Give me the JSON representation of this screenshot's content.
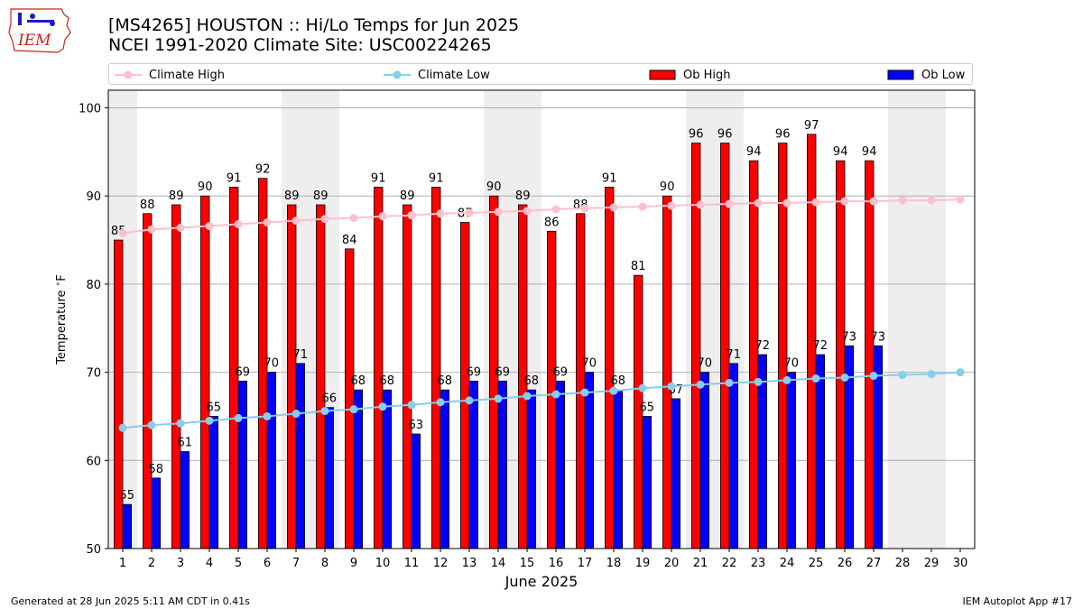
{
  "header": {
    "title_line1": "[MS4265] HOUSTON :: Hi/Lo Temps for Jun 2025",
    "title_line2": "NCEI 1991-2020 Climate Site: USC00224265"
  },
  "logo": {
    "text": "IEM"
  },
  "legend": {
    "climate_high": "Climate High",
    "climate_low": "Climate Low",
    "ob_high": "Ob High",
    "ob_low": "Ob Low"
  },
  "footer": {
    "left": "Generated at 28 Jun 2025 5:11 AM CDT in 0.41s",
    "right": "IEM Autoplot App #17"
  },
  "colors": {
    "ob_high": "#ff0000",
    "ob_low": "#0000ff",
    "climate_high": "#ffc0cb",
    "climate_low": "#87ceeb",
    "weekend_shade": "#eeeeee",
    "grid": "#b0b0b0"
  },
  "chart_data": {
    "type": "bar",
    "xlabel": "June 2025",
    "ylabel": "Temperature $^\\circ$F",
    "ylim": [
      50,
      102
    ],
    "yticks": [
      50,
      60,
      70,
      80,
      90,
      100
    ],
    "grid": "horizontal",
    "legend_position": "top",
    "categories": [
      1,
      2,
      3,
      4,
      5,
      6,
      7,
      8,
      9,
      10,
      11,
      12,
      13,
      14,
      15,
      16,
      17,
      18,
      19,
      20,
      21,
      22,
      23,
      24,
      25,
      26,
      27,
      28,
      29,
      30
    ],
    "weekend_days": [
      1,
      7,
      8,
      14,
      15,
      21,
      22,
      28,
      29
    ],
    "series": [
      {
        "name": "Ob High",
        "kind": "bar",
        "values": [
          85,
          88,
          89,
          90,
          91,
          92,
          89,
          89,
          84,
          91,
          89,
          91,
          87,
          90,
          89,
          86,
          88,
          91,
          81,
          90,
          96,
          96,
          94,
          96,
          97,
          94,
          94,
          null,
          null,
          null
        ]
      },
      {
        "name": "Ob Low",
        "kind": "bar",
        "values": [
          55,
          58,
          61,
          65,
          69,
          70,
          71,
          66,
          68,
          68,
          63,
          68,
          69,
          69,
          68,
          69,
          70,
          68,
          65,
          67,
          70,
          71,
          72,
          70,
          72,
          73,
          73,
          null,
          null,
          null
        ]
      },
      {
        "name": "Climate High",
        "kind": "line",
        "values": [
          85.8,
          86.2,
          86.4,
          86.6,
          86.8,
          87.0,
          87.2,
          87.4,
          87.5,
          87.7,
          87.8,
          88.0,
          88.1,
          88.2,
          88.3,
          88.5,
          88.6,
          88.7,
          88.8,
          88.9,
          89.0,
          89.1,
          89.2,
          89.2,
          89.3,
          89.4,
          89.4,
          89.5,
          89.5,
          89.6
        ]
      },
      {
        "name": "Climate Low",
        "kind": "line",
        "values": [
          63.7,
          64.0,
          64.2,
          64.5,
          64.8,
          65.0,
          65.3,
          65.6,
          65.8,
          66.1,
          66.3,
          66.6,
          66.8,
          67.0,
          67.3,
          67.5,
          67.7,
          67.9,
          68.2,
          68.4,
          68.6,
          68.8,
          68.9,
          69.1,
          69.3,
          69.4,
          69.6,
          69.7,
          69.8,
          70.0
        ]
      }
    ]
  }
}
